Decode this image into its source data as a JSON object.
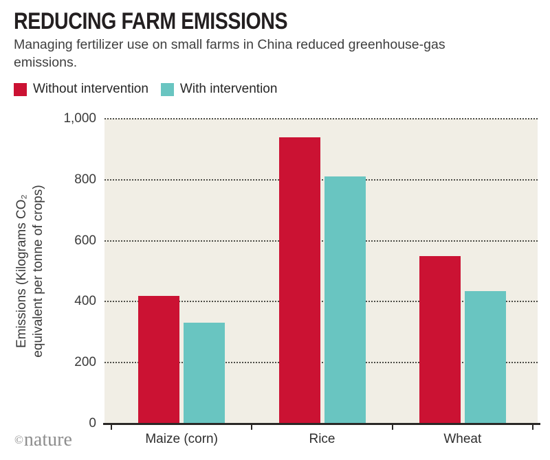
{
  "header": {
    "title": "REDUCING FARM EMISSIONS",
    "subtitle": "Managing fertilizer use on small farms in China reduced greenhouse-gas emissions."
  },
  "chart_data": {
    "type": "bar",
    "title": "REDUCING FARM EMISSIONS",
    "subtitle": "Managing fertilizer use on small farms in China reduced greenhouse-gas emissions.",
    "categories": [
      "Maize (corn)",
      "Rice",
      "Wheat"
    ],
    "series": [
      {
        "name": "Without intervention",
        "color": "#cb1233",
        "values": [
          420,
          940,
          550
        ]
      },
      {
        "name": "With intervention",
        "color": "#69c5c1",
        "values": [
          330,
          810,
          435
        ]
      }
    ],
    "ylabel_lines": [
      "Emissions (Kilograms CO₂",
      "equivalent per tonne of crops)"
    ],
    "ylabel": "Emissions (Kilograms CO₂ equivalent per tonne of crops)",
    "xlabel": "",
    "ylim": [
      0,
      1000
    ],
    "yticks": [
      {
        "value": 0,
        "label": "0"
      },
      {
        "value": 200,
        "label": "200"
      },
      {
        "value": 400,
        "label": "400"
      },
      {
        "value": 600,
        "label": "600"
      },
      {
        "value": 800,
        "label": "800"
      },
      {
        "value": 1000,
        "label": "1,000"
      }
    ],
    "grid": "horizontal dotted",
    "legend_position": "top-left",
    "plot_background": "#f1eee5"
  },
  "footer": {
    "copyright_symbol": "©",
    "logo_text": "nature"
  }
}
